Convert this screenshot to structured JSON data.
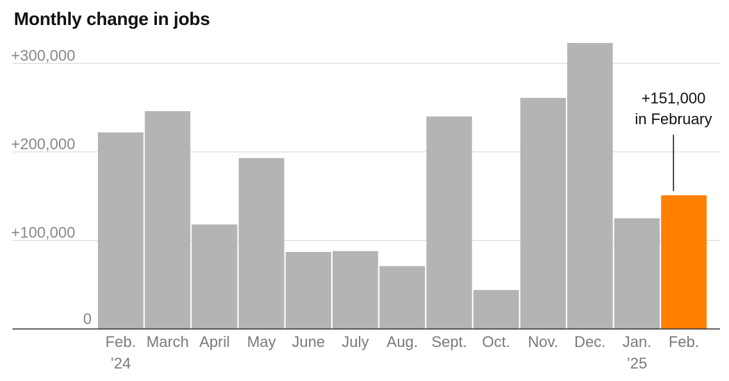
{
  "chart_data": {
    "type": "bar",
    "title": "Monthly change in jobs",
    "xlabel": "",
    "ylabel": "",
    "categories": [
      [
        "Feb.",
        "’24"
      ],
      [
        "March"
      ],
      [
        "April"
      ],
      [
        "May"
      ],
      [
        "June"
      ],
      [
        "July"
      ],
      [
        "Aug."
      ],
      [
        "Sept."
      ],
      [
        "Oct."
      ],
      [
        "Nov."
      ],
      [
        "Dec."
      ],
      [
        "Jan.",
        "’25"
      ],
      [
        "Feb."
      ]
    ],
    "values": [
      222000,
      246000,
      118000,
      193000,
      87000,
      88000,
      71000,
      240000,
      44000,
      261000,
      323000,
      125000,
      151000
    ],
    "highlight_index": 12,
    "ylim": [
      0,
      330000
    ],
    "yticks": [
      {
        "value": 0,
        "label": "0"
      },
      {
        "value": 100000,
        "label": "+100,000"
      },
      {
        "value": 200000,
        "label": "+200,000"
      },
      {
        "value": 300000,
        "label": "+300,000"
      }
    ],
    "grid": true,
    "annotation": {
      "index": 12,
      "lines": [
        "+151,000",
        "in February"
      ]
    },
    "colors": {
      "bar": "#b4b4b4",
      "highlight": "#ff7f00",
      "grid": "#d4d4d4",
      "baseline": "#333333"
    }
  }
}
